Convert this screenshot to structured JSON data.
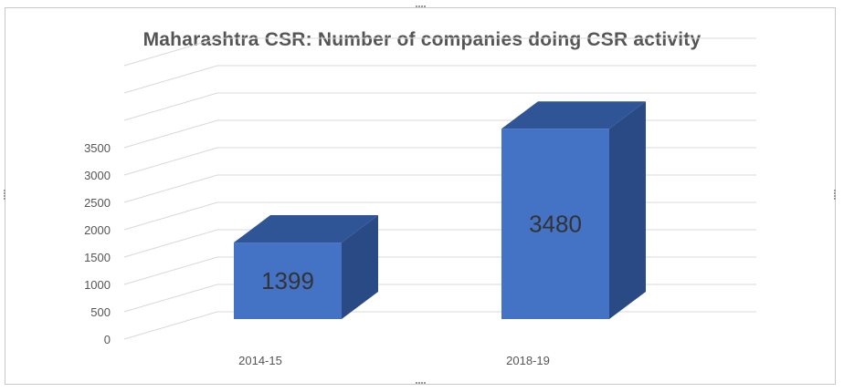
{
  "chart_data": {
    "type": "bar",
    "title": "Maharashtra CSR: Number of companies doing CSR activity",
    "categories": [
      "2014-15",
      "2018-19"
    ],
    "values": [
      1399,
      3480
    ],
    "data_labels": [
      "1399",
      "3480"
    ],
    "yticks": [
      "0",
      "500",
      "1000",
      "1500",
      "2000",
      "2500",
      "3000",
      "3500"
    ],
    "ylim": [
      0,
      5000
    ],
    "xlabel": "",
    "ylabel": "",
    "grid": true,
    "legend": "none",
    "style": "3d-column",
    "colors": {
      "bar_front": "#4472c4",
      "bar_top": "#2f5597",
      "bar_side": "#2a4a85",
      "grid": "#d9d9d9",
      "text": "#555555"
    }
  }
}
